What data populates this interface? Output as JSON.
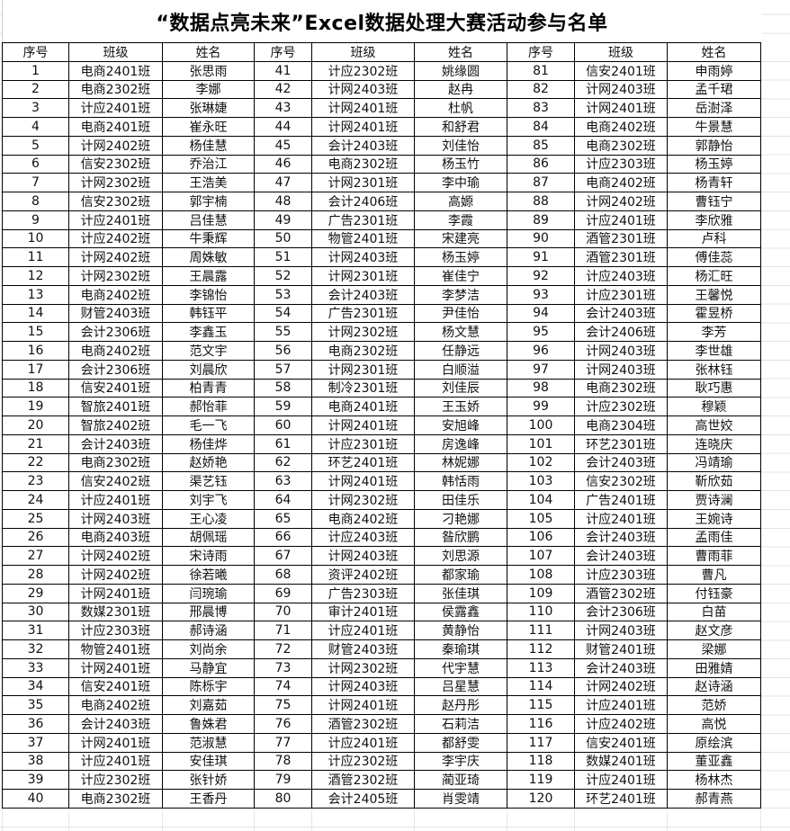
{
  "title": "“数据点亮未来”Excel数据处理大赛活动参与名单",
  "headers": [
    "序号",
    "班级",
    "姓名"
  ],
  "rows": [
    [
      "1",
      "电商2401班",
      "张思雨"
    ],
    [
      "2",
      "电商2302班",
      "李娜"
    ],
    [
      "3",
      "计应2401班",
      "张琳婕"
    ],
    [
      "4",
      "电商2401班",
      "崔永旺"
    ],
    [
      "5",
      "计网2402班",
      "杨佳慧"
    ],
    [
      "6",
      "信安2302班",
      "乔治江"
    ],
    [
      "7",
      "计网2302班",
      "王浩美"
    ],
    [
      "8",
      "信安2302班",
      "郭宇楠"
    ],
    [
      "9",
      "计应2401班",
      "吕佳慧"
    ],
    [
      "10",
      "计应2402班",
      "牛秉辉"
    ],
    [
      "11",
      "计网2402班",
      "周姝敏"
    ],
    [
      "12",
      "计网2302班",
      "王晨露"
    ],
    [
      "13",
      "电商2402班",
      "李锦怡"
    ],
    [
      "14",
      "财管2403班",
      "韩钰平"
    ],
    [
      "15",
      "会计2306班",
      "李鑫玉"
    ],
    [
      "16",
      "电商2402班",
      "范文宇"
    ],
    [
      "17",
      "会计2306班",
      "刘晨欣"
    ],
    [
      "18",
      "信安2401班",
      "柏青青"
    ],
    [
      "19",
      "智旅2401班",
      "郝怡菲"
    ],
    [
      "20",
      "智旅2402班",
      "毛一飞"
    ],
    [
      "21",
      "会计2403班",
      "杨佳烨"
    ],
    [
      "22",
      "电商2302班",
      "赵娇艳"
    ],
    [
      "23",
      "信安2402班",
      "渠艺钰"
    ],
    [
      "24",
      "计应2401班",
      "刘宇飞"
    ],
    [
      "25",
      "计网2403班",
      "王心凌"
    ],
    [
      "26",
      "电商2403班",
      "胡佩瑶"
    ],
    [
      "27",
      "计网2402班",
      "宋诗雨"
    ],
    [
      "28",
      "计网2402班",
      "徐若曦"
    ],
    [
      "29",
      "计网2401班",
      "闫琬瑜"
    ],
    [
      "30",
      "数媒2301班",
      "邢晨博"
    ],
    [
      "31",
      "计应2303班",
      "郝诗涵"
    ],
    [
      "32",
      "物管2401班",
      "刘尚余"
    ],
    [
      "33",
      "计网2401班",
      "马静宜"
    ],
    [
      "34",
      "信安2401班",
      "陈栎宇"
    ],
    [
      "35",
      "电商2402班",
      "刘嘉茹"
    ],
    [
      "36",
      "会计2403班",
      "鲁姝君"
    ],
    [
      "37",
      "计网2401班",
      "范淑慧"
    ],
    [
      "38",
      "计应2401班",
      "安佳琪"
    ],
    [
      "39",
      "计应2302班",
      "张针娇"
    ],
    [
      "40",
      "电商2302班",
      "王香丹"
    ],
    [
      "41",
      "计应2302班",
      "姚缘圆"
    ],
    [
      "42",
      "计网2403班",
      "赵冉"
    ],
    [
      "43",
      "计网2401班",
      "杜帆"
    ],
    [
      "44",
      "计网2401班",
      "和舒君"
    ],
    [
      "45",
      "会计2403班",
      "刘佳怡"
    ],
    [
      "46",
      "电商2302班",
      "杨玉竹"
    ],
    [
      "47",
      "计网2301班",
      "李中瑜"
    ],
    [
      "48",
      "会计2406班",
      "高嫄"
    ],
    [
      "49",
      "广告2301班",
      "李霞"
    ],
    [
      "50",
      "物管2401班",
      "宋建亮"
    ],
    [
      "51",
      "计网2403班",
      "杨玉婷"
    ],
    [
      "52",
      "计网2301班",
      "崔佳宁"
    ],
    [
      "53",
      "会计2403班",
      "李梦洁"
    ],
    [
      "54",
      "广告2301班",
      "尹佳怡"
    ],
    [
      "55",
      "计网2302班",
      "杨文慧"
    ],
    [
      "56",
      "电商2302班",
      "任静远"
    ],
    [
      "57",
      "计网2301班",
      "白顺溢"
    ],
    [
      "58",
      "制冷2301班",
      "刘佳辰"
    ],
    [
      "59",
      "电商2401班",
      "王玉娇"
    ],
    [
      "60",
      "计网2401班",
      "安旭峰"
    ],
    [
      "61",
      "计应2301班",
      "房逸峰"
    ],
    [
      "62",
      "环艺2401班",
      "林妮娜"
    ],
    [
      "63",
      "计网2401班",
      "韩恬雨"
    ],
    [
      "64",
      "计网2302班",
      "田佳乐"
    ],
    [
      "65",
      "电商2402班",
      "刁艳娜"
    ],
    [
      "66",
      "计应2403班",
      "昝欣鹏"
    ],
    [
      "67",
      "计网2403班",
      "刘思源"
    ],
    [
      "68",
      "资评2402班",
      "都家瑜"
    ],
    [
      "69",
      "广告2303班",
      "张佳琪"
    ],
    [
      "70",
      "审计2401班",
      "侯露鑫"
    ],
    [
      "71",
      "计应2401班",
      "黄静怡"
    ],
    [
      "72",
      "财管2403班",
      "秦瑜琪"
    ],
    [
      "73",
      "计网2302班",
      "代宇慧"
    ],
    [
      "74",
      "计网2403班",
      "吕星慧"
    ],
    [
      "75",
      "计网2401班",
      "赵丹彤"
    ],
    [
      "76",
      "酒管2302班",
      "石莉洁"
    ],
    [
      "77",
      "计应2401班",
      "都舒雯"
    ],
    [
      "78",
      "计应2302班",
      "李宇庆"
    ],
    [
      "79",
      "酒管2302班",
      "蔺亚琦"
    ],
    [
      "80",
      "会计2405班",
      "肖雯靖"
    ],
    [
      "81",
      "信安2401班",
      "申雨婷"
    ],
    [
      "82",
      "计网2403班",
      "孟千珺"
    ],
    [
      "83",
      "计网2401班",
      "岳澍泽"
    ],
    [
      "84",
      "电商2402班",
      "牛景慧"
    ],
    [
      "85",
      "电商2302班",
      "郭静怡"
    ],
    [
      "86",
      "计应2303班",
      "杨玉婷"
    ],
    [
      "87",
      "电商2402班",
      "杨青轩"
    ],
    [
      "88",
      "计网2402班",
      "曹钰宁"
    ],
    [
      "89",
      "计应2401班",
      "李欣雅"
    ],
    [
      "90",
      "酒管2301班",
      "卢科"
    ],
    [
      "91",
      "酒管2301班",
      "傅佳蕊"
    ],
    [
      "92",
      "计应2403班",
      "杨汇旺"
    ],
    [
      "93",
      "计应2301班",
      "王馨悦"
    ],
    [
      "94",
      "会计2403班",
      "霍昱桥"
    ],
    [
      "95",
      "会计2406班",
      "李芳"
    ],
    [
      "96",
      "计网2403班",
      "李世雄"
    ],
    [
      "97",
      "计网2403班",
      "张林钰"
    ],
    [
      "98",
      "电商2302班",
      "耿巧惠"
    ],
    [
      "99",
      "计应2302班",
      "穆颖"
    ],
    [
      "100",
      "电商2304班",
      "高世姣"
    ],
    [
      "101",
      "环艺2301班",
      "连晓庆"
    ],
    [
      "102",
      "会计2403班",
      "冯靖瑜"
    ],
    [
      "103",
      "信安2302班",
      "靳欣茹"
    ],
    [
      "104",
      "广告2401班",
      "贾诗澜"
    ],
    [
      "105",
      "计应2401班",
      "王婉诗"
    ],
    [
      "106",
      "会计2403班",
      "孟雨佳"
    ],
    [
      "107",
      "会计2403班",
      "曹雨菲"
    ],
    [
      "108",
      "计应2303班",
      "曹凡"
    ],
    [
      "109",
      "酒管2302班",
      "付钰豪"
    ],
    [
      "110",
      "会计2306班",
      "白苗"
    ],
    [
      "111",
      "计网2403班",
      "赵文彦"
    ],
    [
      "112",
      "财管2401班",
      "梁娜"
    ],
    [
      "113",
      "会计2403班",
      "田雅婧"
    ],
    [
      "114",
      "计网2402班",
      "赵诗涵"
    ],
    [
      "115",
      "计应2401班",
      "范娇"
    ],
    [
      "116",
      "计应2402班",
      "高悦"
    ],
    [
      "117",
      "信安2401班",
      "原绘滨"
    ],
    [
      "118",
      "数媒2401班",
      "董亚鑫"
    ],
    [
      "119",
      "计应2401班",
      "杨林杰"
    ],
    [
      "120",
      "环艺2401班",
      "郝青燕"
    ]
  ]
}
